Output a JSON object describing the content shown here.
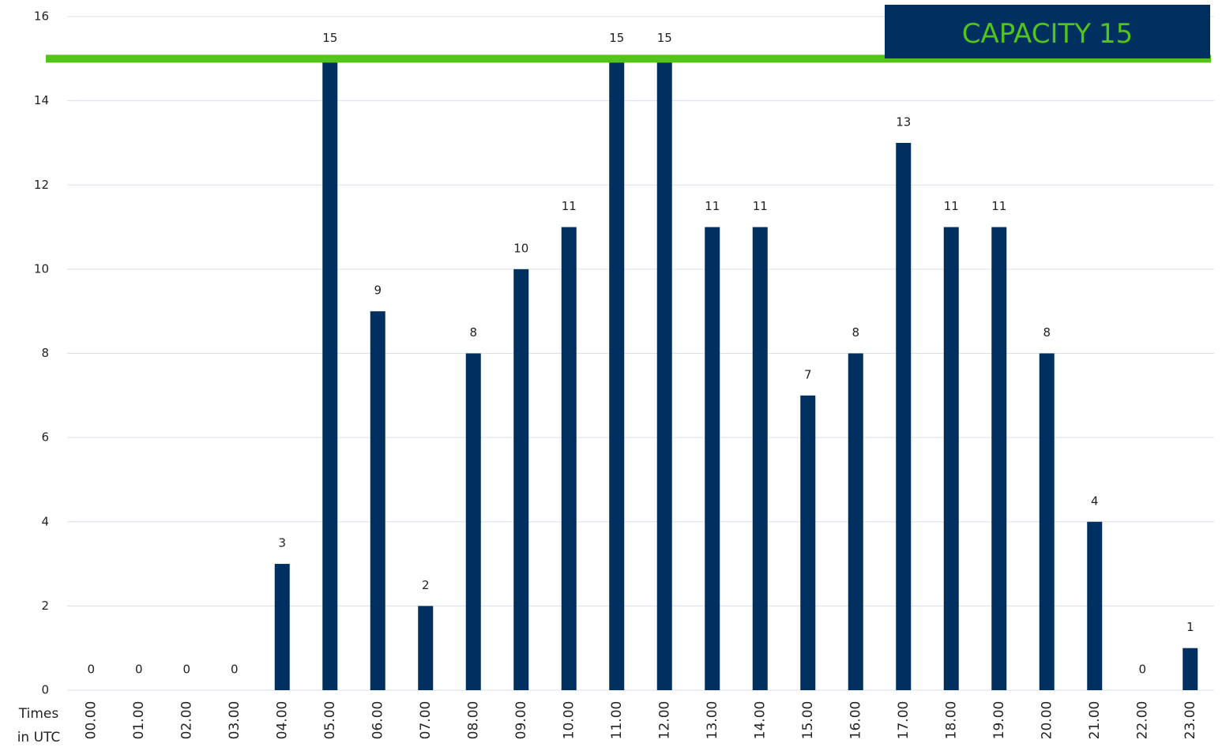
{
  "chart_data": {
    "type": "bar",
    "categories": [
      "00.00",
      "01.00",
      "02.00",
      "03.00",
      "04.00",
      "05.00",
      "06.00",
      "07.00",
      "08.00",
      "09.00",
      "10.00",
      "11.00",
      "12.00",
      "13.00",
      "14.00",
      "15.00",
      "16.00",
      "17.00",
      "18.00",
      "19.00",
      "20.00",
      "21.00",
      "22.00",
      "23.00"
    ],
    "values": [
      0,
      0,
      0,
      0,
      3,
      15,
      9,
      2,
      8,
      10,
      11,
      15,
      15,
      11,
      11,
      7,
      8,
      13,
      11,
      11,
      8,
      4,
      0,
      1
    ],
    "color": "#003060",
    "ylim": [
      0,
      16
    ],
    "yticks": [
      0,
      2,
      4,
      6,
      8,
      10,
      12,
      14,
      16
    ],
    "grid": true,
    "x_label": [
      "Times",
      "in UTC"
    ],
    "capacity_label": "CAPACITY",
    "capacity": 15,
    "capacity_color": "#52c41a"
  }
}
